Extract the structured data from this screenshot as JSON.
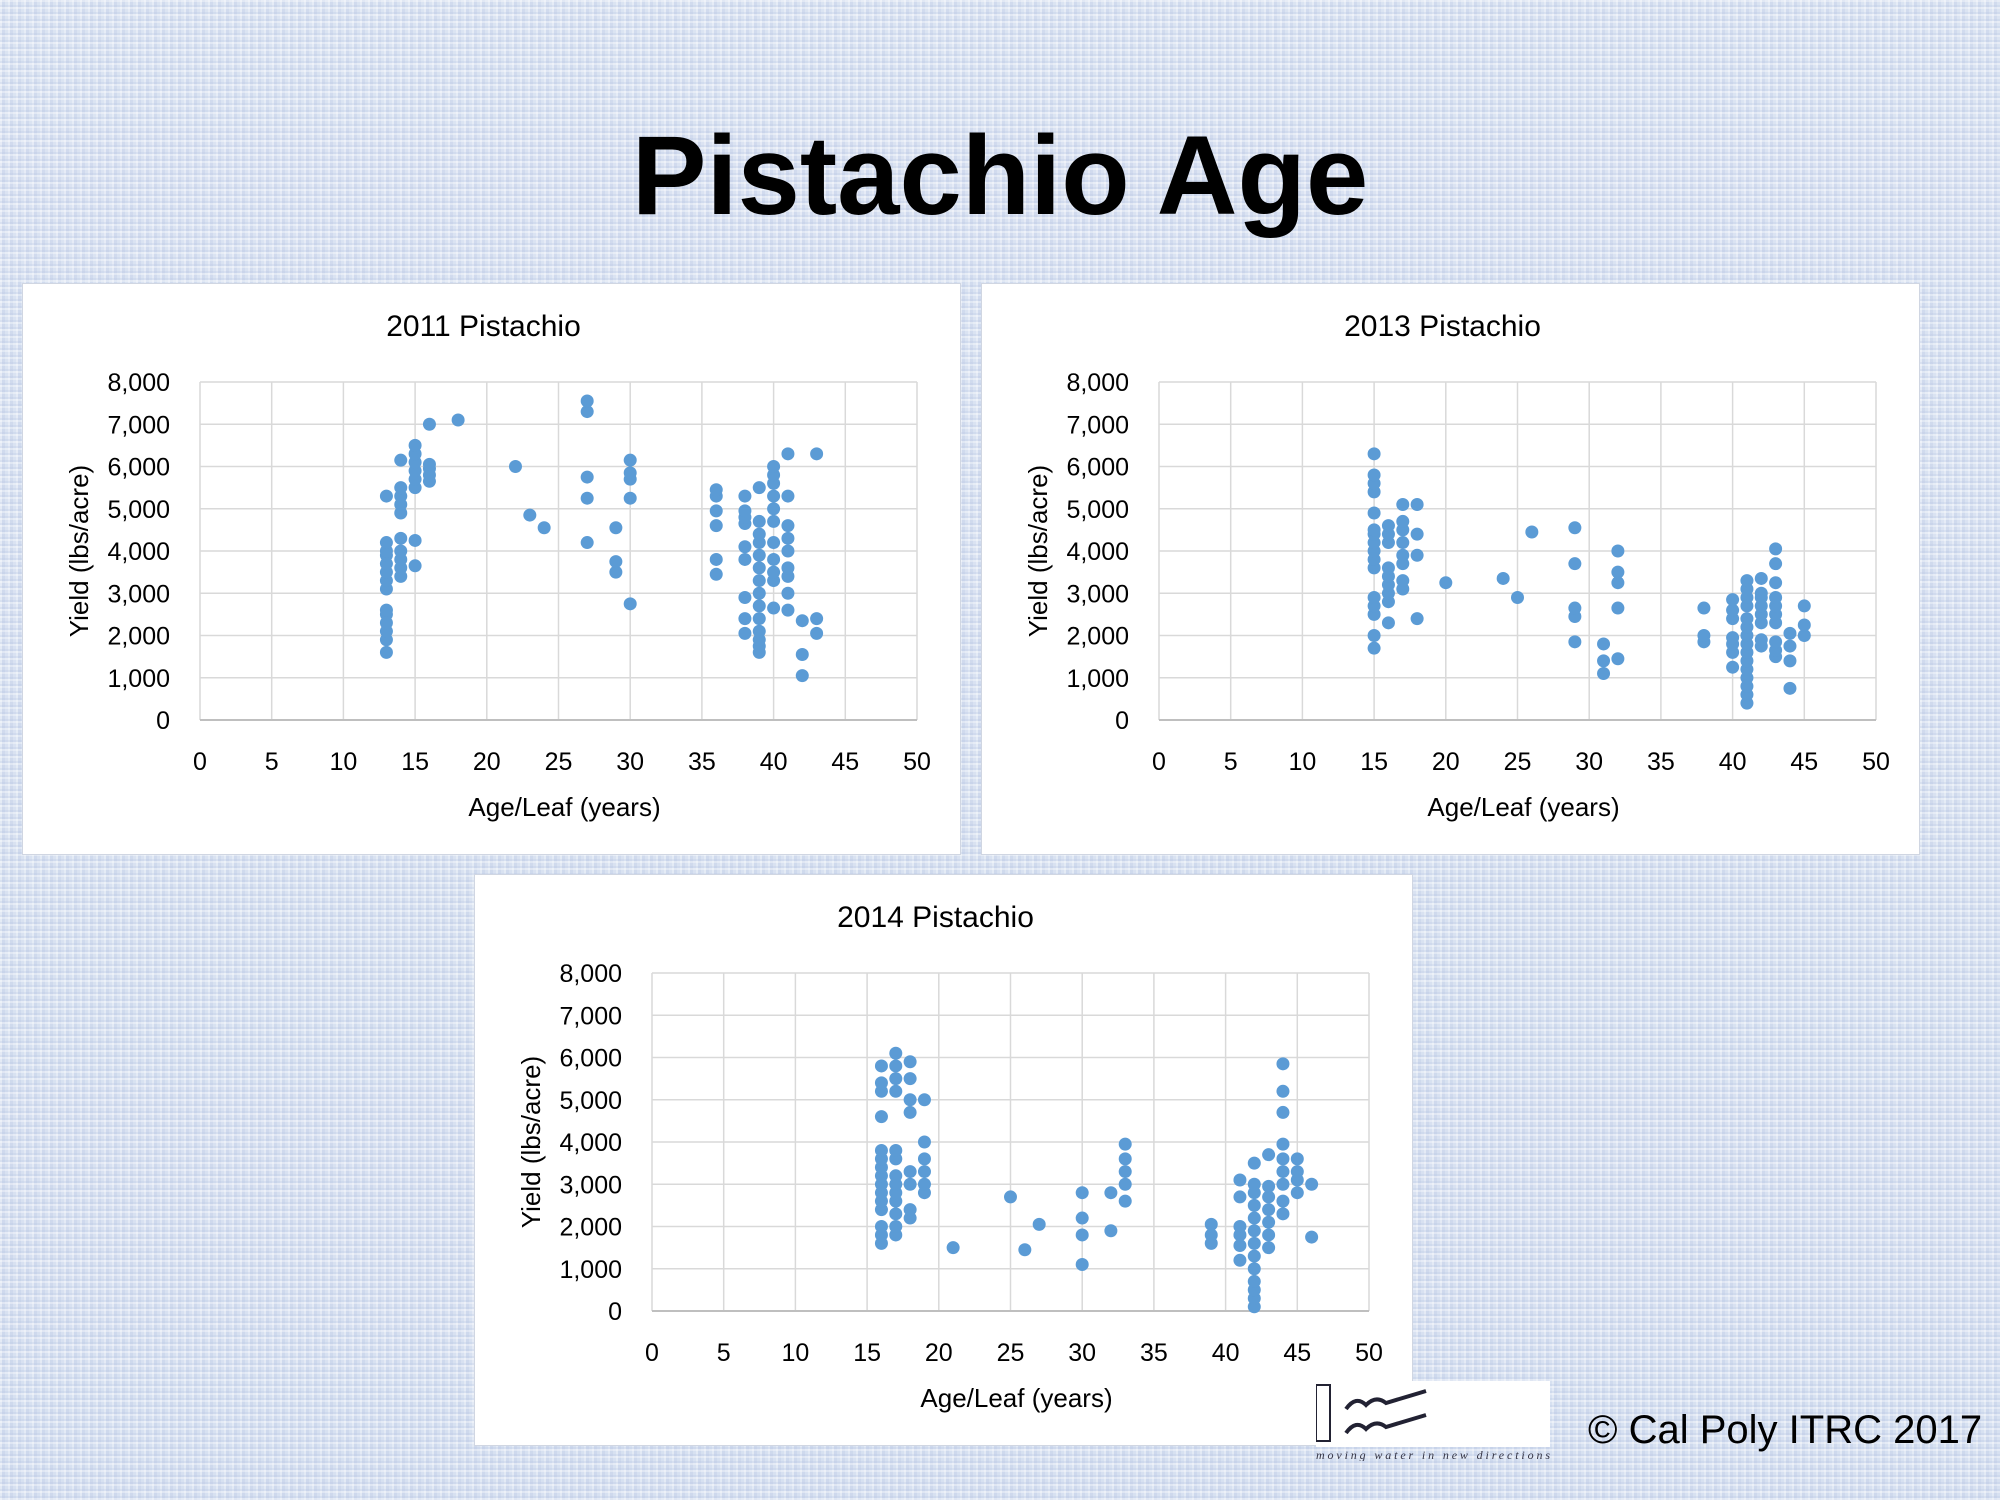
{
  "slide": {
    "title": "Pistachio Age",
    "copyright": "© Cal Poly ITRC 2017",
    "logo_tagline": "moving water in new directions"
  },
  "colors": {
    "marker": "#5b9bd5",
    "grid": "#d9d9d9",
    "text": "#000000"
  },
  "chart_data": [
    {
      "type": "scatter",
      "title": "2011 Pistachio",
      "xlabel": "Age/Leaf (years)",
      "ylabel": "Yield (lbs/acre)",
      "xlim": [
        0,
        50
      ],
      "ylim": [
        0,
        8000
      ],
      "xticks": [
        "0",
        "5",
        "10",
        "15",
        "20",
        "25",
        "30",
        "35",
        "40",
        "45",
        "50"
      ],
      "yticks": [
        "0",
        "1,000",
        "2,000",
        "3,000",
        "4,000",
        "5,000",
        "6,000",
        "7,000",
        "8,000"
      ],
      "grid": true,
      "points": [
        [
          13,
          1600
        ],
        [
          13,
          1900
        ],
        [
          13,
          2100
        ],
        [
          13,
          2300
        ],
        [
          13,
          2500
        ],
        [
          13,
          2600
        ],
        [
          13,
          3100
        ],
        [
          13,
          3300
        ],
        [
          13,
          3500
        ],
        [
          13,
          3700
        ],
        [
          13,
          3900
        ],
        [
          13,
          4000
        ],
        [
          13,
          4200
        ],
        [
          13,
          5300
        ],
        [
          14,
          3400
        ],
        [
          14,
          3600
        ],
        [
          14,
          3800
        ],
        [
          14,
          4000
        ],
        [
          14,
          4300
        ],
        [
          14,
          4900
        ],
        [
          14,
          5100
        ],
        [
          14,
          5300
        ],
        [
          14,
          5500
        ],
        [
          14,
          6150
        ],
        [
          15,
          3650
        ],
        [
          15,
          4250
        ],
        [
          15,
          5500
        ],
        [
          15,
          5700
        ],
        [
          15,
          5900
        ],
        [
          15,
          6100
        ],
        [
          15,
          6300
        ],
        [
          15,
          6500
        ],
        [
          16,
          5650
        ],
        [
          16,
          5800
        ],
        [
          16,
          5950
        ],
        [
          16,
          6050
        ],
        [
          16,
          7000
        ],
        [
          18,
          7100
        ],
        [
          22,
          6000
        ],
        [
          23,
          4850
        ],
        [
          24,
          4550
        ],
        [
          27,
          4200
        ],
        [
          27,
          5250
        ],
        [
          27,
          5750
        ],
        [
          27,
          7300
        ],
        [
          27,
          7550
        ],
        [
          29,
          3500
        ],
        [
          29,
          3750
        ],
        [
          29,
          4550
        ],
        [
          30,
          2750
        ],
        [
          30,
          5250
        ],
        [
          30,
          5700
        ],
        [
          30,
          5850
        ],
        [
          30,
          6150
        ],
        [
          36,
          3450
        ],
        [
          36,
          3800
        ],
        [
          36,
          4600
        ],
        [
          36,
          4950
        ],
        [
          36,
          5300
        ],
        [
          36,
          5450
        ],
        [
          38,
          2050
        ],
        [
          38,
          2400
        ],
        [
          38,
          2900
        ],
        [
          38,
          3800
        ],
        [
          38,
          4100
        ],
        [
          38,
          4650
        ],
        [
          38,
          4800
        ],
        [
          38,
          4950
        ],
        [
          38,
          5300
        ],
        [
          39,
          1600
        ],
        [
          39,
          1750
        ],
        [
          39,
          1900
        ],
        [
          39,
          2100
        ],
        [
          39,
          2400
        ],
        [
          39,
          2700
        ],
        [
          39,
          3000
        ],
        [
          39,
          3300
        ],
        [
          39,
          3600
        ],
        [
          39,
          3900
        ],
        [
          39,
          4200
        ],
        [
          39,
          4400
        ],
        [
          39,
          4700
        ],
        [
          39,
          5500
        ],
        [
          40,
          2650
        ],
        [
          40,
          3300
        ],
        [
          40,
          3500
        ],
        [
          40,
          3800
        ],
        [
          40,
          4200
        ],
        [
          40,
          4700
        ],
        [
          40,
          5000
        ],
        [
          40,
          5300
        ],
        [
          40,
          5600
        ],
        [
          40,
          5800
        ],
        [
          40,
          6000
        ],
        [
          41,
          2600
        ],
        [
          41,
          3000
        ],
        [
          41,
          3400
        ],
        [
          41,
          3600
        ],
        [
          41,
          4000
        ],
        [
          41,
          4300
        ],
        [
          41,
          4600
        ],
        [
          41,
          5300
        ],
        [
          41,
          6300
        ],
        [
          42,
          1050
        ],
        [
          42,
          1550
        ],
        [
          42,
          2350
        ],
        [
          43,
          2050
        ],
        [
          43,
          2400
        ],
        [
          43,
          6300
        ]
      ]
    },
    {
      "type": "scatter",
      "title": "2013 Pistachio",
      "xlabel": "Age/Leaf (years)",
      "ylabel": "Yield (lbs/acre)",
      "xlim": [
        0,
        50
      ],
      "ylim": [
        0,
        8000
      ],
      "xticks": [
        "0",
        "5",
        "10",
        "15",
        "20",
        "25",
        "30",
        "35",
        "40",
        "45",
        "50"
      ],
      "yticks": [
        "0",
        "1,000",
        "2,000",
        "3,000",
        "4,000",
        "5,000",
        "6,000",
        "7,000",
        "8,000"
      ],
      "grid": true,
      "points": [
        [
          15,
          1700
        ],
        [
          15,
          2000
        ],
        [
          15,
          2500
        ],
        [
          15,
          2700
        ],
        [
          15,
          2900
        ],
        [
          15,
          3600
        ],
        [
          15,
          3800
        ],
        [
          15,
          4000
        ],
        [
          15,
          4200
        ],
        [
          15,
          4400
        ],
        [
          15,
          4500
        ],
        [
          15,
          4900
        ],
        [
          15,
          5400
        ],
        [
          15,
          5600
        ],
        [
          15,
          5800
        ],
        [
          15,
          6300
        ],
        [
          16,
          2300
        ],
        [
          16,
          2800
        ],
        [
          16,
          3000
        ],
        [
          16,
          3200
        ],
        [
          16,
          3400
        ],
        [
          16,
          3600
        ],
        [
          16,
          4200
        ],
        [
          16,
          4400
        ],
        [
          16,
          4600
        ],
        [
          17,
          3100
        ],
        [
          17,
          3300
        ],
        [
          17,
          3700
        ],
        [
          17,
          3900
        ],
        [
          17,
          4200
        ],
        [
          17,
          4500
        ],
        [
          17,
          4700
        ],
        [
          17,
          5100
        ],
        [
          18,
          2400
        ],
        [
          18,
          3900
        ],
        [
          18,
          4400
        ],
        [
          18,
          5100
        ],
        [
          20,
          3250
        ],
        [
          24,
          3350
        ],
        [
          25,
          2900
        ],
        [
          26,
          4450
        ],
        [
          29,
          1850
        ],
        [
          29,
          2450
        ],
        [
          29,
          2650
        ],
        [
          29,
          3700
        ],
        [
          29,
          4550
        ],
        [
          31,
          1100
        ],
        [
          31,
          1400
        ],
        [
          31,
          1800
        ],
        [
          32,
          1450
        ],
        [
          32,
          2650
        ],
        [
          32,
          3250
        ],
        [
          32,
          3500
        ],
        [
          32,
          4000
        ],
        [
          38,
          1850
        ],
        [
          38,
          2000
        ],
        [
          38,
          2650
        ],
        [
          40,
          1250
        ],
        [
          40,
          1600
        ],
        [
          40,
          1800
        ],
        [
          40,
          1950
        ],
        [
          40,
          2400
        ],
        [
          40,
          2600
        ],
        [
          40,
          2850
        ],
        [
          41,
          400
        ],
        [
          41,
          600
        ],
        [
          41,
          800
        ],
        [
          41,
          1000
        ],
        [
          41,
          1200
        ],
        [
          41,
          1400
        ],
        [
          41,
          1600
        ],
        [
          41,
          1800
        ],
        [
          41,
          2000
        ],
        [
          41,
          2200
        ],
        [
          41,
          2400
        ],
        [
          41,
          2700
        ],
        [
          41,
          2900
        ],
        [
          41,
          3100
        ],
        [
          41,
          3300
        ],
        [
          42,
          1750
        ],
        [
          42,
          1900
        ],
        [
          42,
          2300
        ],
        [
          42,
          2500
        ],
        [
          42,
          2700
        ],
        [
          42,
          2900
        ],
        [
          42,
          3000
        ],
        [
          42,
          3350
        ],
        [
          43,
          1500
        ],
        [
          43,
          1650
        ],
        [
          43,
          1850
        ],
        [
          43,
          2300
        ],
        [
          43,
          2500
        ],
        [
          43,
          2700
        ],
        [
          43,
          2900
        ],
        [
          43,
          3250
        ],
        [
          43,
          3700
        ],
        [
          43,
          4050
        ],
        [
          44,
          750
        ],
        [
          44,
          1400
        ],
        [
          44,
          1750
        ],
        [
          44,
          2050
        ],
        [
          45,
          2000
        ],
        [
          45,
          2250
        ],
        [
          45,
          2700
        ]
      ]
    },
    {
      "type": "scatter",
      "title": "2014 Pistachio",
      "xlabel": "Age/Leaf (years)",
      "ylabel": "Yield (lbs/acre)",
      "xlim": [
        0,
        50
      ],
      "ylim": [
        0,
        8000
      ],
      "xticks": [
        "0",
        "5",
        "10",
        "15",
        "20",
        "25",
        "30",
        "35",
        "40",
        "45",
        "50"
      ],
      "yticks": [
        "0",
        "1,000",
        "2,000",
        "3,000",
        "4,000",
        "5,000",
        "6,000",
        "7,000",
        "8,000"
      ],
      "grid": true,
      "points": [
        [
          16,
          1600
        ],
        [
          16,
          1800
        ],
        [
          16,
          2000
        ],
        [
          16,
          2400
        ],
        [
          16,
          2600
        ],
        [
          16,
          2800
        ],
        [
          16,
          3000
        ],
        [
          16,
          3200
        ],
        [
          16,
          3400
        ],
        [
          16,
          3600
        ],
        [
          16,
          3800
        ],
        [
          16,
          4600
        ],
        [
          16,
          5200
        ],
        [
          16,
          5400
        ],
        [
          16,
          5800
        ],
        [
          17,
          1800
        ],
        [
          17,
          2000
        ],
        [
          17,
          2300
        ],
        [
          17,
          2600
        ],
        [
          17,
          2800
        ],
        [
          17,
          3000
        ],
        [
          17,
          3200
        ],
        [
          17,
          3600
        ],
        [
          17,
          3800
        ],
        [
          17,
          5200
        ],
        [
          17,
          5500
        ],
        [
          17,
          5800
        ],
        [
          17,
          6100
        ],
        [
          18,
          2200
        ],
        [
          18,
          2400
        ],
        [
          18,
          3000
        ],
        [
          18,
          3300
        ],
        [
          18,
          4700
        ],
        [
          18,
          5000
        ],
        [
          18,
          5500
        ],
        [
          18,
          5900
        ],
        [
          19,
          2800
        ],
        [
          19,
          3000
        ],
        [
          19,
          3300
        ],
        [
          19,
          3600
        ],
        [
          19,
          4000
        ],
        [
          19,
          5000
        ],
        [
          21,
          1500
        ],
        [
          25,
          2700
        ],
        [
          26,
          1450
        ],
        [
          27,
          2050
        ],
        [
          30,
          1100
        ],
        [
          30,
          1800
        ],
        [
          30,
          2200
        ],
        [
          30,
          2800
        ],
        [
          32,
          1900
        ],
        [
          32,
          2800
        ],
        [
          33,
          2600
        ],
        [
          33,
          3000
        ],
        [
          33,
          3300
        ],
        [
          33,
          3600
        ],
        [
          33,
          3950
        ],
        [
          39,
          1600
        ],
        [
          39,
          1800
        ],
        [
          39,
          2050
        ],
        [
          41,
          1200
        ],
        [
          41,
          1550
        ],
        [
          41,
          1800
        ],
        [
          41,
          2000
        ],
        [
          41,
          2700
        ],
        [
          41,
          3100
        ],
        [
          42,
          100
        ],
        [
          42,
          300
        ],
        [
          42,
          500
        ],
        [
          42,
          700
        ],
        [
          42,
          1000
        ],
        [
          42,
          1300
        ],
        [
          42,
          1600
        ],
        [
          42,
          1900
        ],
        [
          42,
          2200
        ],
        [
          42,
          2500
        ],
        [
          42,
          2800
        ],
        [
          42,
          3000
        ],
        [
          42,
          3500
        ],
        [
          43,
          1500
        ],
        [
          43,
          1800
        ],
        [
          43,
          2100
        ],
        [
          43,
          2400
        ],
        [
          43,
          2700
        ],
        [
          43,
          2950
        ],
        [
          43,
          3700
        ],
        [
          44,
          2300
        ],
        [
          44,
          2600
        ],
        [
          44,
          3000
        ],
        [
          44,
          3300
        ],
        [
          44,
          3600
        ],
        [
          44,
          3950
        ],
        [
          44,
          4700
        ],
        [
          44,
          5200
        ],
        [
          44,
          5850
        ],
        [
          45,
          2800
        ],
        [
          45,
          3100
        ],
        [
          45,
          3300
        ],
        [
          45,
          3600
        ],
        [
          46,
          1750
        ],
        [
          46,
          3000
        ]
      ]
    }
  ]
}
